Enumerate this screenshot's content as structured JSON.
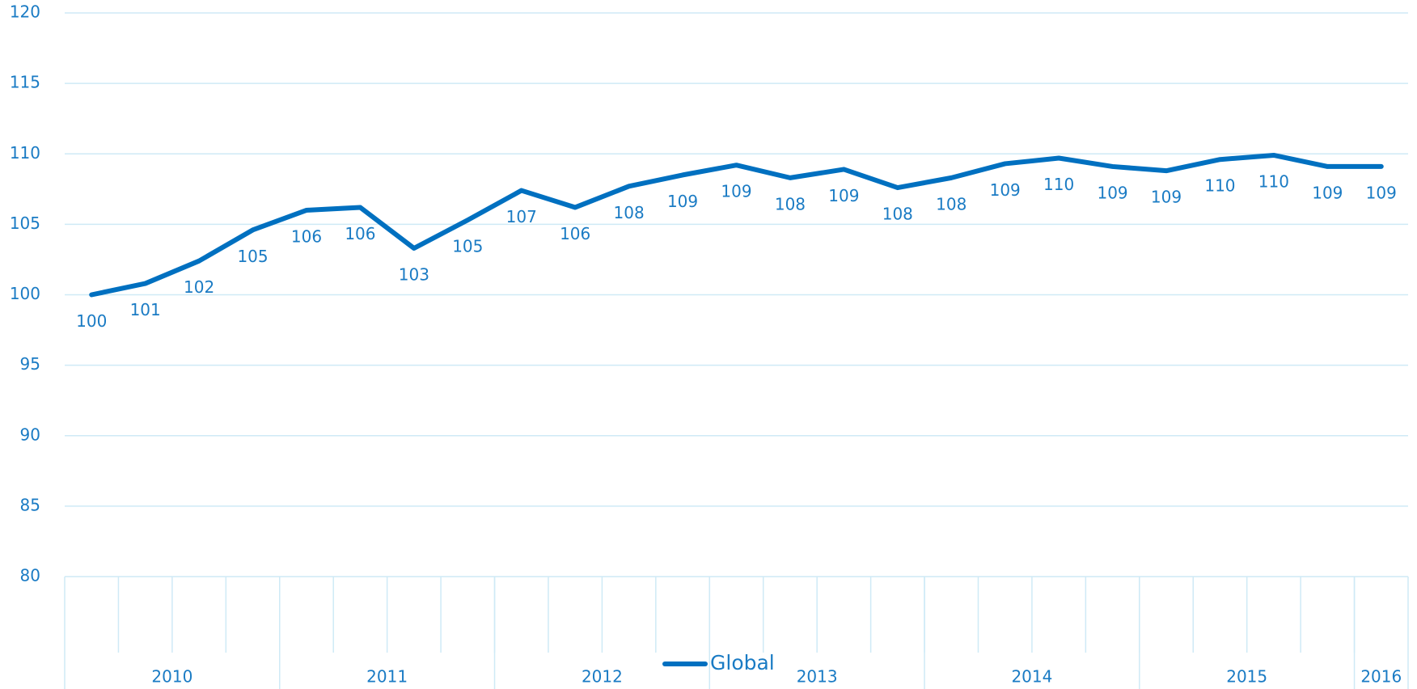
{
  "chart_data": {
    "type": "line",
    "categories": [
      null,
      null,
      null,
      null,
      null,
      null,
      null,
      null,
      null,
      null,
      null,
      null,
      null,
      null,
      null,
      null,
      null,
      null,
      null,
      null,
      null,
      null,
      null,
      null,
      null
    ],
    "year_groups": [
      {
        "label": "2010",
        "span": 4
      },
      {
        "label": "2011",
        "span": 4
      },
      {
        "label": "2012",
        "span": 4
      },
      {
        "label": "2013",
        "span": 4
      },
      {
        "label": "2014",
        "span": 4
      },
      {
        "label": "2015",
        "span": 4
      },
      {
        "label": "2016",
        "span": 1
      }
    ],
    "series": [
      {
        "name": "Global",
        "color": "#0070c0",
        "values": [
          100,
          100.8,
          102.4,
          104.6,
          106.0,
          106.2,
          103.3,
          105.3,
          107.4,
          106.2,
          107.7,
          108.5,
          109.2,
          108.3,
          108.9,
          107.6,
          108.3,
          109.3,
          109.7,
          109.1,
          108.8,
          109.6,
          109.9,
          109.1,
          109.1
        ],
        "value_labels": [
          "100",
          "101",
          "102",
          "105",
          "106",
          "106",
          "103",
          "105",
          "107",
          "106",
          "108",
          "109",
          "109",
          "108",
          "109",
          "108",
          "108",
          "109",
          "110",
          "109",
          "109",
          "110",
          "110",
          "109",
          "109"
        ]
      }
    ],
    "ylim": [
      80,
      120
    ],
    "yticks": [
      80,
      85,
      90,
      95,
      100,
      105,
      110,
      115,
      120
    ],
    "grid": true,
    "legend": "bottom"
  }
}
